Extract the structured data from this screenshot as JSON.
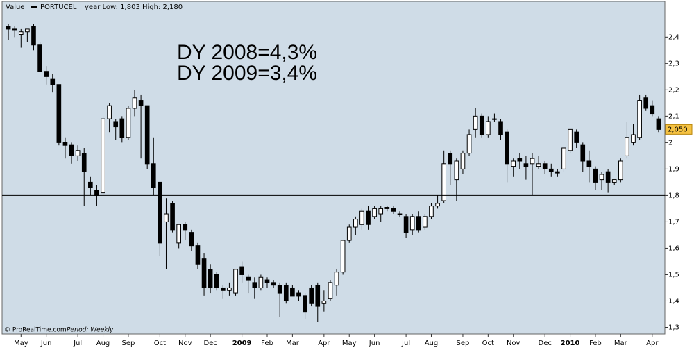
{
  "chart_data": {
    "type": "candlestick",
    "header": "Value",
    "range_note": "year Low: 1,803 High: 2,180",
    "footer_source": "© ProRealTime.com",
    "footer_period": "Period: Weekly",
    "annotations": [
      "DY 2008=4,3%",
      "DY 2009=3,4%"
    ],
    "series": [
      {
        "name": "PORTUCEL",
        "up_color": "#ffffff",
        "down_color": "#000000",
        "open": [
          2.44,
          2.43,
          2.41,
          2.42,
          2.44,
          2.37,
          2.27,
          2.24,
          2.22,
          2.0,
          1.99,
          1.95,
          1.96,
          1.85,
          1.82,
          1.81,
          2.09,
          2.08,
          2.09,
          2.02,
          2.13,
          2.16,
          2.14,
          1.92,
          1.85,
          1.7,
          1.77,
          1.62,
          1.69,
          1.66,
          1.61,
          1.56,
          1.52,
          1.5,
          1.45,
          1.44,
          1.43,
          1.53,
          1.49,
          1.47,
          1.45,
          1.48,
          1.47,
          1.46,
          1.46,
          1.45,
          1.43,
          1.42,
          1.45,
          1.46,
          1.39,
          1.41,
          1.46,
          1.51,
          1.63,
          1.68,
          1.69,
          1.74,
          1.72,
          1.73,
          1.75,
          1.75,
          1.73,
          1.72,
          1.67,
          1.72,
          1.68,
          1.72,
          1.76,
          1.78,
          1.96,
          1.86,
          1.9,
          1.96,
          2.05,
          2.1,
          2.03,
          2.09,
          2.08,
          2.04,
          1.91,
          1.94,
          1.92,
          1.92,
          1.91,
          1.92,
          1.9,
          1.89,
          1.9,
          1.97,
          2.04,
          1.99,
          1.93,
          1.9,
          1.86,
          1.89,
          1.85,
          1.86,
          1.95,
          2.0,
          2.02,
          2.17,
          2.14,
          2.09
        ],
        "high": [
          2.45,
          2.44,
          2.43,
          2.43,
          2.45,
          2.38,
          2.29,
          2.26,
          2.22,
          2.02,
          2.0,
          1.99,
          1.98,
          1.87,
          1.84,
          2.1,
          2.15,
          2.09,
          2.1,
          2.14,
          2.2,
          2.18,
          2.14,
          2.02,
          1.85,
          1.79,
          1.78,
          1.69,
          1.7,
          1.67,
          1.62,
          1.58,
          1.54,
          1.51,
          1.46,
          1.47,
          1.52,
          1.55,
          1.5,
          1.49,
          1.5,
          1.49,
          1.48,
          1.47,
          1.47,
          1.46,
          1.44,
          1.43,
          1.46,
          1.47,
          1.44,
          1.48,
          1.52,
          1.63,
          1.69,
          1.72,
          1.75,
          1.76,
          1.76,
          1.76,
          1.76,
          1.76,
          1.74,
          1.73,
          1.73,
          1.74,
          1.73,
          1.77,
          1.8,
          1.97,
          1.97,
          1.94,
          1.97,
          2.05,
          2.13,
          2.11,
          2.1,
          2.11,
          2.09,
          2.05,
          1.94,
          1.96,
          1.95,
          1.96,
          1.95,
          1.93,
          1.92,
          1.9,
          1.98,
          2.05,
          2.05,
          2.0,
          1.97,
          1.91,
          1.89,
          1.9,
          1.86,
          1.94,
          2.08,
          2.07,
          2.18,
          2.18,
          2.16,
          2.1
        ],
        "low": [
          2.39,
          2.4,
          2.36,
          2.38,
          2.35,
          2.27,
          2.22,
          2.19,
          1.99,
          1.94,
          1.92,
          1.93,
          1.76,
          1.8,
          1.76,
          1.8,
          2.04,
          2.01,
          2.0,
          2.01,
          2.1,
          1.94,
          1.9,
          1.8,
          1.57,
          1.52,
          1.66,
          1.6,
          1.63,
          1.59,
          1.52,
          1.42,
          1.43,
          1.44,
          1.41,
          1.42,
          1.42,
          1.47,
          1.43,
          1.41,
          1.44,
          1.45,
          1.45,
          1.34,
          1.39,
          1.42,
          1.4,
          1.33,
          1.38,
          1.32,
          1.36,
          1.4,
          1.42,
          1.5,
          1.62,
          1.65,
          1.67,
          1.67,
          1.71,
          1.7,
          1.74,
          1.73,
          1.72,
          1.64,
          1.65,
          1.66,
          1.67,
          1.71,
          1.75,
          1.77,
          1.84,
          1.78,
          1.88,
          1.95,
          2.02,
          2.02,
          2.02,
          2.08,
          2.01,
          1.85,
          1.87,
          1.9,
          1.86,
          1.8,
          1.9,
          1.88,
          1.87,
          1.87,
          1.89,
          1.96,
          1.98,
          1.89,
          1.85,
          1.82,
          1.82,
          1.81,
          1.84,
          1.85,
          1.94,
          1.99,
          2.01,
          2.12,
          2.1,
          2.04
        ],
        "close": [
          2.43,
          2.43,
          2.42,
          2.43,
          2.37,
          2.27,
          2.25,
          2.22,
          2.0,
          1.99,
          1.95,
          1.97,
          1.89,
          1.83,
          1.8,
          2.09,
          2.14,
          2.06,
          2.02,
          2.13,
          2.17,
          2.14,
          1.92,
          1.83,
          1.62,
          1.73,
          1.67,
          1.69,
          1.67,
          1.61,
          1.54,
          1.45,
          1.45,
          1.45,
          1.44,
          1.45,
          1.52,
          1.5,
          1.48,
          1.45,
          1.49,
          1.47,
          1.46,
          1.43,
          1.4,
          1.42,
          1.42,
          1.36,
          1.39,
          1.38,
          1.4,
          1.47,
          1.51,
          1.63,
          1.68,
          1.71,
          1.74,
          1.69,
          1.75,
          1.75,
          1.755,
          1.74,
          1.73,
          1.66,
          1.72,
          1.67,
          1.72,
          1.76,
          1.77,
          1.92,
          1.92,
          1.93,
          1.96,
          2.03,
          2.1,
          2.03,
          2.08,
          2.09,
          2.03,
          1.92,
          1.93,
          1.93,
          1.91,
          1.94,
          1.92,
          1.9,
          1.89,
          1.885,
          1.98,
          2.05,
          2.0,
          1.93,
          1.91,
          1.85,
          1.88,
          1.85,
          1.86,
          1.93,
          2.02,
          2.03,
          2.16,
          2.13,
          2.11,
          2.05
        ]
      }
    ],
    "xlim": [
      -1,
      104
    ],
    "xticks": [
      {
        "value": 2,
        "label": "May"
      },
      {
        "value": 6,
        "label": "Jun"
      },
      {
        "value": 11,
        "label": "Jul"
      },
      {
        "value": 15,
        "label": "Aug"
      },
      {
        "value": 19,
        "label": "Sep"
      },
      {
        "value": 24,
        "label": "Oct"
      },
      {
        "value": 28,
        "label": "Nov"
      },
      {
        "value": 32,
        "label": "Dec"
      },
      {
        "value": 37,
        "label": "2009"
      },
      {
        "value": 41,
        "label": "Feb"
      },
      {
        "value": 45,
        "label": "Mar"
      },
      {
        "value": 50,
        "label": "Apr"
      },
      {
        "value": 54,
        "label": "May"
      },
      {
        "value": 58,
        "label": "Jun"
      },
      {
        "value": 63,
        "label": "Jul"
      },
      {
        "value": 67,
        "label": "Aug"
      },
      {
        "value": 72,
        "label": "Sep"
      },
      {
        "value": 76,
        "label": "Oct"
      },
      {
        "value": 80,
        "label": "Nov"
      },
      {
        "value": 85,
        "label": "Dec"
      },
      {
        "value": 89,
        "label": "2010"
      },
      {
        "value": 93,
        "label": "Feb"
      },
      {
        "value": 97,
        "label": "Mar"
      },
      {
        "value": 102,
        "label": "Apr"
      }
    ],
    "ylim": [
      1.275,
      2.535
    ],
    "yticks": [
      {
        "value": 1.3,
        "label": "1,3"
      },
      {
        "value": 1.4,
        "label": "1,4"
      },
      {
        "value": 1.5,
        "label": "1,5"
      },
      {
        "value": 1.6,
        "label": "1,6"
      },
      {
        "value": 1.7,
        "label": "1,7"
      },
      {
        "value": 1.8,
        "label": "1,8"
      },
      {
        "value": 1.9,
        "label": "1,9"
      },
      {
        "value": 2,
        "label": "2"
      },
      {
        "value": 2.1,
        "label": "2,1"
      },
      {
        "value": 2.2,
        "label": "2,2"
      },
      {
        "value": 2.3,
        "label": "2,3"
      },
      {
        "value": 2.4,
        "label": "2,4"
      }
    ],
    "hline": 1.8,
    "last_value": {
      "value": 2.05,
      "label": "2,050"
    },
    "background": "#cfdce7"
  }
}
